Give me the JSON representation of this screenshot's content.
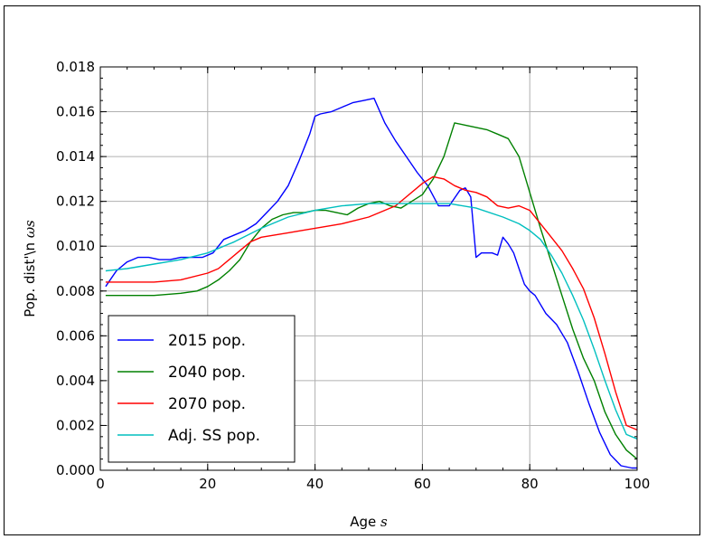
{
  "chart_data": {
    "type": "line",
    "xlabel": "Age",
    "xlabel_symbol": "s",
    "ylabel": "Pop. dist'\\n",
    "ylabel_symbol": "ωs",
    "xlim": [
      0,
      100
    ],
    "ylim": [
      0,
      0.018
    ],
    "xticks": [
      "0",
      "20",
      "40",
      "60",
      "80",
      "100"
    ],
    "yticks": [
      "0.000",
      "0.002",
      "0.004",
      "0.006",
      "0.008",
      "0.010",
      "0.012",
      "0.014",
      "0.016",
      "0.018"
    ],
    "grid": true,
    "legend_position": "lower-left",
    "series": [
      {
        "name": "2015 pop.",
        "color": "#0000ff",
        "x": [
          1,
          3,
          5,
          7,
          9,
          11,
          13,
          15,
          17,
          19,
          21,
          23,
          25,
          27,
          29,
          31,
          33,
          35,
          37,
          39,
          40,
          41,
          43,
          45,
          47,
          49,
          51,
          53,
          55,
          57,
          59,
          61,
          63,
          65,
          67,
          68,
          69,
          70,
          71,
          73,
          74,
          75,
          76,
          77,
          78,
          79,
          80,
          81,
          83,
          85,
          87,
          89,
          91,
          93,
          95,
          97,
          99,
          100
        ],
        "y": [
          0.0082,
          0.0089,
          0.0093,
          0.0095,
          0.0095,
          0.0094,
          0.0094,
          0.0095,
          0.0095,
          0.0095,
          0.0097,
          0.0103,
          0.0105,
          0.0107,
          0.011,
          0.0115,
          0.012,
          0.0127,
          0.0138,
          0.015,
          0.0158,
          0.0159,
          0.016,
          0.0162,
          0.0164,
          0.0165,
          0.0166,
          0.0155,
          0.0147,
          0.014,
          0.0133,
          0.0127,
          0.0118,
          0.0118,
          0.0125,
          0.0126,
          0.0122,
          0.0095,
          0.0097,
          0.0097,
          0.0096,
          0.0104,
          0.0101,
          0.0097,
          0.009,
          0.0083,
          0.008,
          0.0078,
          0.007,
          0.0065,
          0.0057,
          0.0044,
          0.003,
          0.0017,
          0.0007,
          0.0002,
          0.0001,
          0.0001
        ]
      },
      {
        "name": "2040 pop.",
        "color": "#008000",
        "x": [
          1,
          5,
          10,
          15,
          18,
          20,
          22,
          24,
          26,
          28,
          30,
          32,
          34,
          36,
          38,
          40,
          42,
          44,
          46,
          48,
          50,
          52,
          54,
          56,
          58,
          60,
          62,
          64,
          66,
          68,
          70,
          72,
          74,
          76,
          78,
          80,
          82,
          84,
          86,
          88,
          90,
          92,
          94,
          96,
          98,
          100
        ],
        "y": [
          0.0078,
          0.0078,
          0.0078,
          0.0079,
          0.008,
          0.0082,
          0.0085,
          0.0089,
          0.0094,
          0.0102,
          0.0108,
          0.0112,
          0.0114,
          0.0115,
          0.0115,
          0.0116,
          0.0116,
          0.0115,
          0.0114,
          0.0117,
          0.0119,
          0.012,
          0.0118,
          0.0117,
          0.012,
          0.0123,
          0.013,
          0.014,
          0.0155,
          0.0154,
          0.0153,
          0.0152,
          0.015,
          0.0148,
          0.014,
          0.0124,
          0.0108,
          0.0093,
          0.0078,
          0.0063,
          0.005,
          0.004,
          0.0026,
          0.0016,
          0.0009,
          0.0005
        ]
      },
      {
        "name": "2070 pop.",
        "color": "#ff0000",
        "x": [
          1,
          5,
          10,
          15,
          20,
          22,
          24,
          26,
          28,
          30,
          35,
          40,
          45,
          50,
          55,
          60,
          62,
          64,
          66,
          68,
          70,
          72,
          74,
          76,
          78,
          80,
          82,
          84,
          86,
          88,
          90,
          92,
          94,
          96,
          98,
          100
        ],
        "y": [
          0.0084,
          0.0084,
          0.0084,
          0.0085,
          0.0088,
          0.009,
          0.0094,
          0.0098,
          0.0102,
          0.0104,
          0.0106,
          0.0108,
          0.011,
          0.0113,
          0.0118,
          0.0128,
          0.0131,
          0.013,
          0.0127,
          0.0125,
          0.0124,
          0.0122,
          0.0118,
          0.0117,
          0.0118,
          0.0116,
          0.011,
          0.0104,
          0.0098,
          0.009,
          0.0081,
          0.0068,
          0.0052,
          0.0035,
          0.002,
          0.0018
        ]
      },
      {
        "name": "Adj. SS pop.",
        "color": "#00bfbf",
        "x": [
          1,
          5,
          10,
          15,
          20,
          25,
          30,
          35,
          40,
          45,
          50,
          55,
          60,
          65,
          70,
          75,
          78,
          80,
          82,
          84,
          86,
          88,
          90,
          92,
          94,
          96,
          98,
          100
        ],
        "y": [
          0.0089,
          0.009,
          0.0092,
          0.0094,
          0.0097,
          0.0102,
          0.0108,
          0.0113,
          0.0116,
          0.0118,
          0.0119,
          0.0119,
          0.0119,
          0.0119,
          0.0117,
          0.0113,
          0.011,
          0.0107,
          0.0103,
          0.0096,
          0.0088,
          0.0078,
          0.0067,
          0.0054,
          0.004,
          0.0027,
          0.0016,
          0.0014
        ]
      }
    ]
  }
}
